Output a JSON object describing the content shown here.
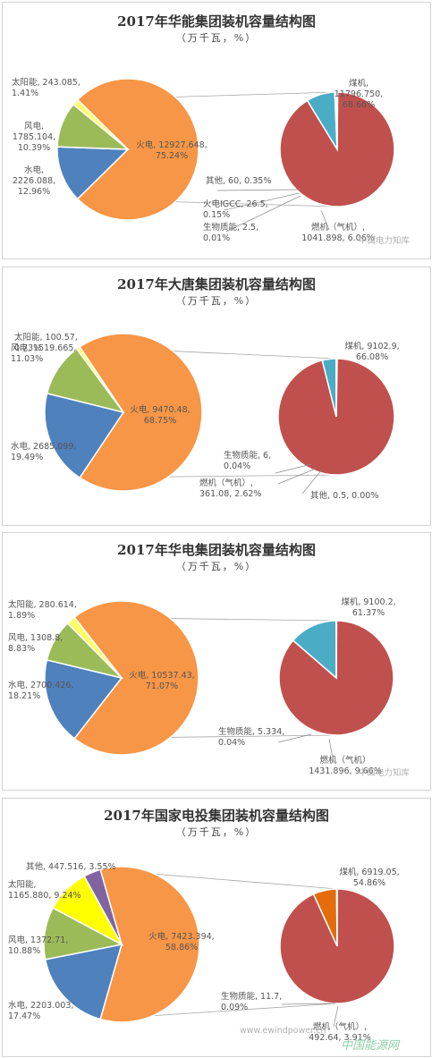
{
  "chart_data": [
    {
      "type": "pie",
      "title": "2017年华能集团装机容量结构图",
      "unit": "（万千瓦，%）",
      "main_pie": [
        {
          "name": "火电",
          "value": 12927.648,
          "pct": "75.24%",
          "color": "#F79646",
          "label": [
            "火电, 12927.648,",
            "75.24%"
          ]
        },
        {
          "name": "水电",
          "value": 2226.088,
          "pct": "12.96%",
          "color": "#4F81BD",
          "label": [
            "水电,",
            "2226.088,",
            "12.96%"
          ]
        },
        {
          "name": "风电",
          "value": 1785.104,
          "pct": "10.39%",
          "color": "#9BBB59",
          "label": [
            "风电,",
            "1785.104,",
            "10.39%"
          ]
        },
        {
          "name": "太阳能",
          "value": 243.085,
          "pct": "1.41%",
          "color": "#FFFF66",
          "label": [
            "太阳能, 243.085,",
            "1.41%"
          ]
        }
      ],
      "breakdown_of": "火电",
      "breakdown_pie": [
        {
          "name": "煤机",
          "value": 11796.75,
          "pct": "68.66%",
          "color": "#C0504D",
          "label": [
            "煤机,",
            "11796.750,",
            "68.66%"
          ]
        },
        {
          "name": "燃机（气机）",
          "value": 1041.898,
          "pct": "6.06%",
          "color": "#4BACC6",
          "label": [
            "燃机（气机）,",
            "1041.898, 6.06%"
          ]
        },
        {
          "name": "其他",
          "value": 60,
          "pct": "0.35%",
          "color": "#8064A2",
          "label": [
            "其他, 60, 0.35%"
          ]
        },
        {
          "name": "火电IGCC",
          "value": 26.5,
          "pct": "0.15%",
          "color": "#F79646",
          "label": [
            "火电IGCC, 26.5,",
            "0.15%"
          ]
        },
        {
          "name": "生物质能",
          "value": 2.5,
          "pct": "0.01%",
          "color": "#9BBB59",
          "label": [
            "生物质能, 2.5,",
            "0.01%"
          ]
        }
      ],
      "watermark": "中国电力知库"
    },
    {
      "type": "pie",
      "title": "2017年大唐集团装机容量结构图",
      "unit": "（万千瓦，%）",
      "main_pie": [
        {
          "name": "火电",
          "value": 9470.48,
          "pct": "68.75%",
          "color": "#F79646",
          "label": [
            "火电, 9470.48,",
            "68.75%"
          ]
        },
        {
          "name": "水电",
          "value": 2685.099,
          "pct": "19.49%",
          "color": "#4F81BD",
          "label": [
            "水电, 2685.099,",
            "19.49%"
          ]
        },
        {
          "name": "风电",
          "value": 1519.665,
          "pct": "11.03%",
          "color": "#9BBB59",
          "label": [
            "风电, 1519.665,",
            "11.03%"
          ]
        },
        {
          "name": "太阳能",
          "value": 100.57,
          "pct": "0.73%",
          "color": "#FFFF66",
          "label": [
            "太阳能, 100.57,",
            "0.73%"
          ]
        }
      ],
      "breakdown_of": "火电",
      "breakdown_pie": [
        {
          "name": "煤机",
          "value": 9102.9,
          "pct": "66.08%",
          "color": "#C0504D",
          "label": [
            "煤机, 9102.9,",
            "66.08%"
          ]
        },
        {
          "name": "燃机（气机）",
          "value": 361.08,
          "pct": "2.62%",
          "color": "#4BACC6",
          "label": [
            "燃机（气机）,",
            "361.08, 2.62%"
          ]
        },
        {
          "name": "生物质能",
          "value": 6,
          "pct": "0.04%",
          "color": "#9BBB59",
          "label": [
            "生物质能, 6,",
            "0.04%"
          ]
        },
        {
          "name": "其他",
          "value": 0.5,
          "pct": "0.00%",
          "color": "#8064A2",
          "label": [
            "其他, 0.5, 0.00%"
          ]
        }
      ]
    },
    {
      "type": "pie",
      "title": "2017年华电集团装机容量结构图",
      "unit": "（万千瓦，%）",
      "main_pie": [
        {
          "name": "火电",
          "value": 10537.43,
          "pct": "71.07%",
          "color": "#F79646",
          "label": [
            "火电, 10537.43,",
            "71.07%"
          ]
        },
        {
          "name": "水电",
          "value": 2700.426,
          "pct": "18.21%",
          "color": "#4F81BD",
          "label": [
            "水电, 2700.426,",
            "18.21%"
          ]
        },
        {
          "name": "风电",
          "value": 1308.8,
          "pct": "8.83%",
          "color": "#9BBB59",
          "label": [
            "风电, 1308.8,",
            "8.83%"
          ]
        },
        {
          "name": "太阳能",
          "value": 280.614,
          "pct": "1.89%",
          "color": "#FFFF66",
          "label": [
            "太阳能, 280.614,",
            "1.89%"
          ]
        }
      ],
      "breakdown_of": "火电",
      "breakdown_pie": [
        {
          "name": "煤机",
          "value": 9100.2,
          "pct": "61.37%",
          "color": "#C0504D",
          "label": [
            "煤机, 9100.2,",
            "61.37%"
          ]
        },
        {
          "name": "燃机（气机）",
          "value": 1431.896,
          "pct": "9.66%",
          "color": "#4BACC6",
          "label": [
            "燃机（气机）",
            "1431.896, 9.66%"
          ]
        },
        {
          "name": "生物质能",
          "value": 5.334,
          "pct": "0.04%",
          "color": "#9BBB59",
          "label": [
            "生物质能, 5.334,",
            "0.04%"
          ]
        }
      ],
      "watermark": "中国电力知库"
    },
    {
      "type": "pie",
      "title": "2017年国家电投集团装机容量结构图",
      "unit": "（万千瓦，%）",
      "main_pie": [
        {
          "name": "火电",
          "value": 7423.394,
          "pct": "58.86%",
          "color": "#F79646",
          "label": [
            "火电, 7423.394,",
            "58.86%"
          ]
        },
        {
          "name": "水电",
          "value": 2203.003,
          "pct": "17.47%",
          "color": "#4F81BD",
          "label": [
            "水电, 2203.003,",
            "17.47%"
          ]
        },
        {
          "name": "风电",
          "value": 1372.71,
          "pct": "10.88%",
          "color": "#9BBB59",
          "label": [
            "风电, 1372.71,",
            "10.88%"
          ]
        },
        {
          "name": "太阳能",
          "value": 1165.88,
          "pct": "9.24%",
          "color": "#FFFF00",
          "label": [
            "太阳能,",
            "1165.880, 9.24%"
          ]
        },
        {
          "name": "其他",
          "value": 447.516,
          "pct": "3.55%",
          "color": "#8064A2",
          "label": [
            "其他, 447.516, 3.55%"
          ]
        }
      ],
      "breakdown_of": "火电",
      "breakdown_pie": [
        {
          "name": "煤机",
          "value": 6919.05,
          "pct": "54.86%",
          "color": "#C0504D",
          "label": [
            "煤机, 6919.05,",
            "54.86%"
          ]
        },
        {
          "name": "燃机（气机）",
          "value": 492.64,
          "pct": "3.91%",
          "color": "#E46C0A",
          "label": [
            "燃机（气机）,",
            "492.64, 3.91%"
          ]
        },
        {
          "name": "生物质能",
          "value": 11.7,
          "pct": "0.09%",
          "color": "#9BBB59",
          "label": [
            "生物质能, 11.7,",
            "0.09%"
          ]
        }
      ],
      "watermark": "www.ewindpower.cn",
      "watermark2": "中国能源网"
    }
  ]
}
